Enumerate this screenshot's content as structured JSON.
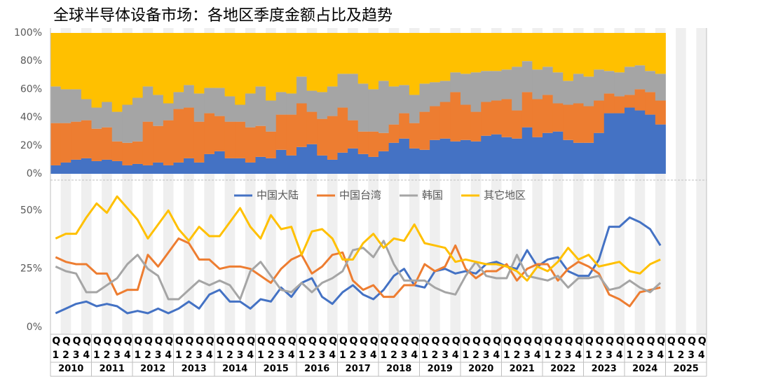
{
  "title": "全球半导体设备市场：各地区季度金额占比及趋势",
  "x_axis": {
    "categories": [
      "Q1",
      "Q2",
      "Q3",
      "Q4",
      "Q1",
      "Q2",
      "Q3",
      "Q4",
      "Q1",
      "Q2",
      "Q3",
      "Q4",
      "Q1",
      "Q2",
      "Q3",
      "Q4",
      "Q1",
      "Q2",
      "Q3",
      "Q4",
      "Q1",
      "Q2",
      "Q3",
      "Q4",
      "Q1",
      "Q2",
      "Q3",
      "Q4",
      "Q1",
      "Q2",
      "Q3",
      "Q4",
      "Q1",
      "Q2",
      "Q3",
      "Q4",
      "Q1",
      "Q2",
      "Q3",
      "Q4",
      "Q1",
      "Q2",
      "Q3",
      "Q4",
      "Q1",
      "Q2",
      "Q3",
      "Q4",
      "Q1",
      "Q2",
      "Q3",
      "Q4",
      "Q1",
      "Q2",
      "Q3",
      "Q4",
      "Q1",
      "Q2",
      "Q3",
      "Q4",
      "Q1",
      "Q2",
      "Q3",
      "Q4"
    ],
    "years": [
      "2010",
      "2011",
      "2012",
      "2013",
      "2014",
      "2015",
      "2016",
      "2017",
      "2018",
      "2019",
      "2020",
      "2021",
      "2022",
      "2023",
      "2024",
      "2025"
    ]
  },
  "chart_data": [
    {
      "type": "stacked_bar",
      "ylim": [
        0,
        100
      ],
      "yticks": [
        {
          "value": 0,
          "label": "0%"
        },
        {
          "value": 20,
          "label": "20%"
        },
        {
          "value": 40,
          "label": "40%"
        },
        {
          "value": 60,
          "label": "60%"
        },
        {
          "value": 80,
          "label": "80%"
        },
        {
          "value": 100,
          "label": "100%"
        }
      ],
      "series": [
        {
          "name": "中国大陆",
          "color": "#4472c4",
          "values": [
            6,
            8,
            10,
            11,
            9,
            10,
            9,
            6,
            7,
            6,
            8,
            6,
            8,
            11,
            8,
            14,
            16,
            11,
            11,
            8,
            12,
            11,
            17,
            13,
            19,
            21,
            13,
            10,
            15,
            18,
            14,
            12,
            16,
            22,
            25,
            18,
            17,
            24,
            25,
            23,
            24,
            23,
            27,
            28,
            26,
            25,
            33,
            26,
            29,
            30,
            24,
            22,
            22,
            29,
            43,
            43,
            47,
            45,
            42,
            35,
            null,
            null,
            null,
            null
          ]
        },
        {
          "name": "中国台湾",
          "color": "#ed7d31",
          "values": [
            30,
            28,
            27,
            27,
            23,
            23,
            14,
            16,
            16,
            31,
            26,
            32,
            38,
            36,
            29,
            29,
            25,
            26,
            26,
            25,
            22,
            19,
            25,
            29,
            31,
            23,
            26,
            31,
            32,
            20,
            16,
            18,
            13,
            13,
            18,
            18,
            27,
            24,
            26,
            35,
            25,
            21,
            24,
            24,
            27,
            20,
            25,
            27,
            27,
            20,
            25,
            28,
            26,
            23,
            14,
            12,
            9,
            15,
            16,
            17,
            null,
            null,
            null,
            null
          ]
        },
        {
          "name": "韩国",
          "color": "#a5a5a5",
          "values": [
            26,
            24,
            23,
            15,
            15,
            18,
            21,
            27,
            31,
            25,
            22,
            12,
            12,
            16,
            20,
            18,
            20,
            18,
            12,
            24,
            28,
            22,
            16,
            15,
            19,
            15,
            19,
            21,
            24,
            33,
            34,
            30,
            37,
            27,
            20,
            20,
            20,
            17,
            15,
            14,
            22,
            28,
            22,
            21,
            21,
            31,
            22,
            21,
            20,
            22,
            17,
            21,
            21,
            22,
            16,
            17,
            20,
            17,
            15,
            19,
            null,
            null,
            null,
            null
          ]
        },
        {
          "name": "其它地区",
          "color": "#ffc000",
          "values": [
            38,
            40,
            40,
            47,
            53,
            49,
            56,
            51,
            46,
            38,
            44,
            50,
            42,
            37,
            43,
            39,
            39,
            45,
            51,
            43,
            38,
            48,
            42,
            43,
            31,
            41,
            42,
            38,
            29,
            29,
            36,
            40,
            34,
            38,
            37,
            44,
            36,
            35,
            34,
            28,
            29,
            28,
            27,
            27,
            26,
            24,
            20,
            26,
            24,
            28,
            34,
            29,
            31,
            26,
            27,
            28,
            24,
            23,
            27,
            29,
            null,
            null,
            null,
            null
          ]
        }
      ]
    },
    {
      "type": "line",
      "ylim": [
        0,
        60
      ],
      "yticks": [
        {
          "value": 0,
          "label": "0%"
        },
        {
          "value": 25,
          "label": "25%"
        },
        {
          "value": 50,
          "label": "50%"
        }
      ],
      "legend": "top",
      "series": [
        {
          "name": "中国大陆",
          "color": "#4472c4",
          "values": [
            6,
            8,
            10,
            11,
            9,
            10,
            9,
            6,
            7,
            6,
            8,
            6,
            8,
            11,
            8,
            14,
            16,
            11,
            11,
            8,
            12,
            11,
            17,
            13,
            19,
            21,
            13,
            10,
            15,
            18,
            14,
            12,
            16,
            22,
            25,
            18,
            17,
            24,
            25,
            23,
            24,
            23,
            27,
            28,
            26,
            25,
            33,
            26,
            29,
            30,
            24,
            22,
            22,
            29,
            43,
            43,
            47,
            45,
            42,
            35,
            null,
            null,
            null,
            null
          ]
        },
        {
          "name": "中国台湾",
          "color": "#ed7d31",
          "values": [
            30,
            28,
            27,
            27,
            23,
            23,
            14,
            16,
            16,
            31,
            26,
            32,
            38,
            36,
            29,
            29,
            25,
            26,
            26,
            25,
            22,
            19,
            25,
            29,
            31,
            23,
            26,
            31,
            32,
            20,
            16,
            18,
            13,
            13,
            18,
            18,
            27,
            24,
            26,
            35,
            25,
            21,
            24,
            24,
            27,
            20,
            25,
            27,
            27,
            20,
            25,
            28,
            26,
            23,
            14,
            12,
            9,
            15,
            16,
            17,
            null,
            null,
            null,
            null
          ]
        },
        {
          "name": "韩国",
          "color": "#a5a5a5",
          "values": [
            26,
            24,
            23,
            15,
            15,
            18,
            21,
            27,
            31,
            25,
            22,
            12,
            12,
            16,
            20,
            18,
            20,
            18,
            12,
            24,
            28,
            22,
            16,
            15,
            19,
            15,
            19,
            21,
            24,
            33,
            34,
            30,
            37,
            27,
            20,
            20,
            20,
            17,
            15,
            14,
            22,
            28,
            22,
            21,
            21,
            31,
            22,
            21,
            20,
            22,
            17,
            21,
            21,
            22,
            16,
            17,
            20,
            17,
            15,
            19,
            null,
            null,
            null,
            null
          ]
        },
        {
          "name": "其它地区",
          "color": "#ffc000",
          "values": [
            38,
            40,
            40,
            47,
            53,
            49,
            56,
            51,
            46,
            38,
            44,
            50,
            42,
            37,
            43,
            39,
            39,
            45,
            51,
            43,
            38,
            48,
            42,
            43,
            31,
            41,
            42,
            38,
            29,
            29,
            36,
            40,
            34,
            38,
            37,
            44,
            36,
            35,
            34,
            28,
            29,
            28,
            27,
            27,
            26,
            24,
            20,
            26,
            24,
            28,
            34,
            29,
            31,
            26,
            27,
            28,
            24,
            23,
            27,
            29,
            null,
            null,
            null,
            null
          ]
        }
      ]
    }
  ]
}
